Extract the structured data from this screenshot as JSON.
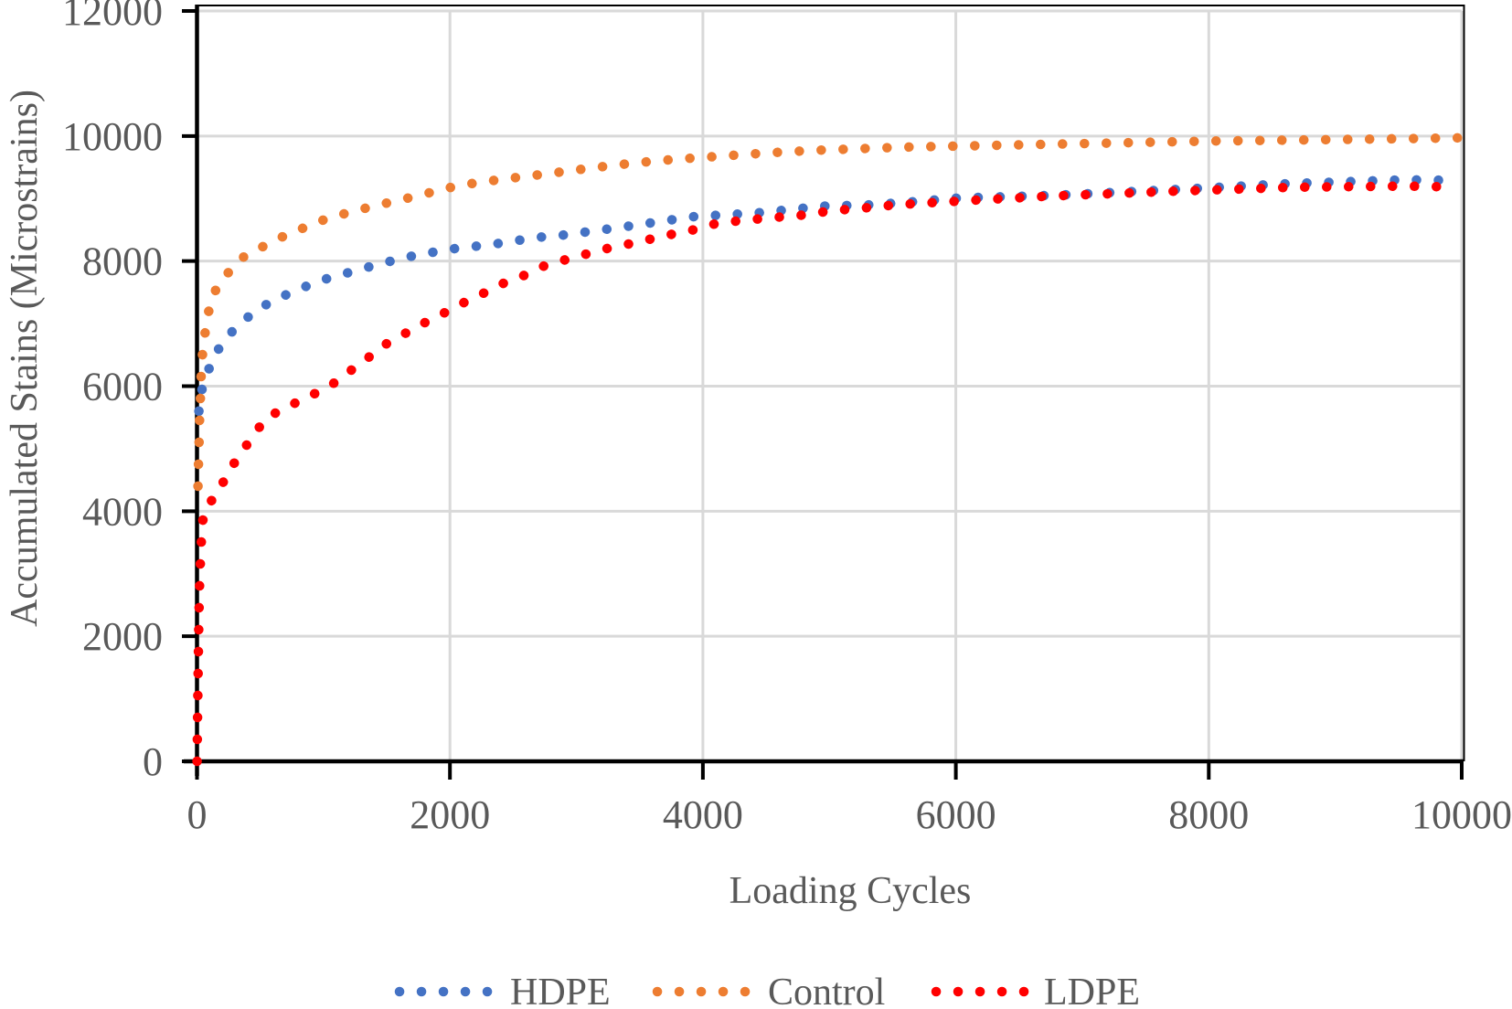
{
  "figure": {
    "x_axis_title": "Loading Cycles",
    "y_axis_title": "Accumulated Stains (Microstrains)",
    "background": "#ffffff",
    "text_color": "#595959",
    "gridline_color": "#d9d9d9",
    "axis_color": "#000000"
  },
  "axes": {
    "x": {
      "tick_labels": [
        "0",
        "2000",
        "4000",
        "6000",
        "8000",
        "10000"
      ],
      "tick_values": [
        0,
        2000,
        4000,
        6000,
        8000,
        10000
      ]
    },
    "y": {
      "tick_labels": [
        "0",
        "2000",
        "4000",
        "6000",
        "8000",
        "10000",
        "12000"
      ],
      "tick_values": [
        0,
        2000,
        4000,
        6000,
        8000,
        10000,
        12000
      ]
    }
  },
  "legend": {
    "position": "bottom",
    "items": [
      {
        "label": "HDPE",
        "color": "#4472C4"
      },
      {
        "label": "Control",
        "color": "#ED7D31"
      },
      {
        "label": "LDPE",
        "color": "#FF0000"
      }
    ]
  },
  "chart_data": {
    "type": "line",
    "line_style": "round-dot",
    "title": "",
    "xlabel": "Loading Cycles",
    "ylabel": "Accumulated Stains (Microstrains)",
    "xlim": [
      0,
      10000
    ],
    "ylim": [
      0,
      12000
    ],
    "grid": true,
    "legend_position": "bottom",
    "series": [
      {
        "name": "HDPE",
        "color": "#4472C4",
        "points": [
          [
            15,
            5600
          ],
          [
            25,
            5800
          ],
          [
            40,
            5950
          ],
          [
            60,
            6070
          ],
          [
            81,
            6200
          ],
          [
            121,
            6420
          ],
          [
            213,
            6740
          ],
          [
            341,
            7000
          ],
          [
            473,
            7220
          ],
          [
            634,
            7400
          ],
          [
            959,
            7680
          ],
          [
            1309,
            7880
          ],
          [
            1646,
            8060
          ],
          [
            1995,
            8190
          ],
          [
            2344,
            8270
          ],
          [
            2693,
            8380
          ],
          [
            2874,
            8410
          ],
          [
            3387,
            8550
          ],
          [
            3922,
            8710
          ],
          [
            4427,
            8770
          ],
          [
            4958,
            8880
          ],
          [
            5331,
            8900
          ],
          [
            5668,
            8950
          ],
          [
            6030,
            9010
          ],
          [
            6764,
            9050
          ],
          [
            7787,
            9150
          ],
          [
            8654,
            9240
          ],
          [
            9557,
            9300
          ],
          [
            9950,
            9290
          ]
        ]
      },
      {
        "name": "Control",
        "color": "#ED7D31",
        "points": [
          [
            8,
            4400
          ],
          [
            12,
            4800
          ],
          [
            17,
            5160
          ],
          [
            21,
            5510
          ],
          [
            26,
            5740
          ],
          [
            30,
            6070
          ],
          [
            40,
            6440
          ],
          [
            61,
            6810
          ],
          [
            88,
            7170
          ],
          [
            153,
            7570
          ],
          [
            261,
            7850
          ],
          [
            381,
            8090
          ],
          [
            530,
            8240
          ],
          [
            707,
            8420
          ],
          [
            860,
            8545
          ],
          [
            1039,
            8690
          ],
          [
            1379,
            8870
          ],
          [
            1714,
            9030
          ],
          [
            2068,
            9210
          ],
          [
            2420,
            9310
          ],
          [
            2783,
            9400
          ],
          [
            3120,
            9490
          ],
          [
            3459,
            9570
          ],
          [
            3800,
            9630
          ],
          [
            4158,
            9680
          ],
          [
            4510,
            9730
          ],
          [
            4861,
            9770
          ],
          [
            5200,
            9795
          ],
          [
            5560,
            9820
          ],
          [
            6270,
            9850
          ],
          [
            6788,
            9870
          ],
          [
            7400,
            9895
          ],
          [
            8029,
            9920
          ],
          [
            8650,
            9935
          ],
          [
            9257,
            9950
          ],
          [
            9967,
            9970
          ]
        ]
      },
      {
        "name": "LDPE",
        "color": "#FF0000",
        "points": [
          [
            1,
            0
          ],
          [
            5,
            800
          ],
          [
            10,
            1600
          ],
          [
            15,
            2300
          ],
          [
            20,
            2800
          ],
          [
            25,
            3100
          ],
          [
            31,
            3400
          ],
          [
            38,
            3650
          ],
          [
            46,
            3850
          ],
          [
            56,
            4000
          ],
          [
            81,
            4070
          ],
          [
            177,
            4350
          ],
          [
            262,
            4670
          ],
          [
            358,
            4960
          ],
          [
            454,
            5230
          ],
          [
            543,
            5490
          ],
          [
            746,
            5700
          ],
          [
            1044,
            5990
          ],
          [
            1188,
            6210
          ],
          [
            1333,
            6420
          ],
          [
            1465,
            6640
          ],
          [
            1617,
            6810
          ],
          [
            1766,
            6980
          ],
          [
            1935,
            7150
          ],
          [
            2104,
            7330
          ],
          [
            2260,
            7480
          ],
          [
            2417,
            7640
          ],
          [
            2585,
            7770
          ],
          [
            2742,
            7920
          ],
          [
            2911,
            8020
          ],
          [
            3091,
            8120
          ],
          [
            3260,
            8210
          ],
          [
            3429,
            8280
          ],
          [
            3604,
            8360
          ],
          [
            3778,
            8440
          ],
          [
            3951,
            8510
          ],
          [
            4120,
            8610
          ],
          [
            4471,
            8680
          ],
          [
            4821,
            8740
          ],
          [
            4994,
            8800
          ],
          [
            5338,
            8860
          ],
          [
            5524,
            8900
          ],
          [
            6200,
            8980
          ],
          [
            6753,
            9040
          ],
          [
            7775,
            9120
          ],
          [
            8666,
            9180
          ],
          [
            9546,
            9200
          ],
          [
            9950,
            9185
          ]
        ]
      }
    ]
  }
}
